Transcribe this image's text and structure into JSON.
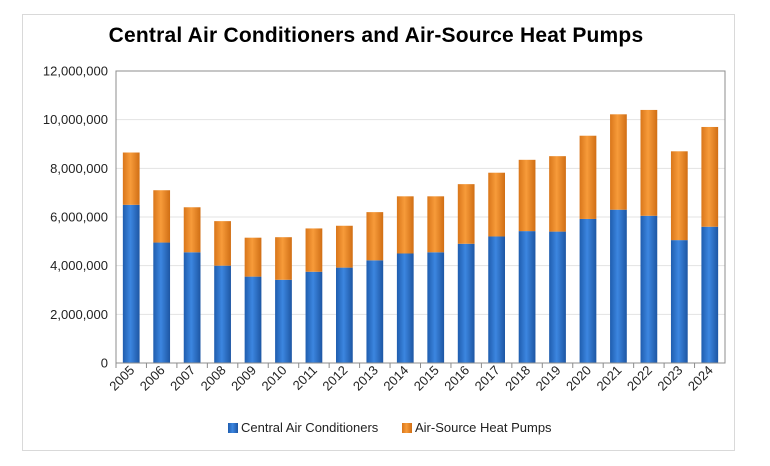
{
  "chart_data": {
    "type": "bar",
    "stacked": true,
    "title": "Central Air Conditioners and Air-Source Heat Pumps",
    "xlabel": "",
    "ylabel": "",
    "ylim": [
      0,
      12000000
    ],
    "yticks": [
      0,
      2000000,
      4000000,
      6000000,
      8000000,
      10000000,
      12000000
    ],
    "ytick_labels": [
      "0",
      "2,000,000",
      "4,000,000",
      "6,000,000",
      "8,000,000",
      "10,000,000",
      "12,000,000"
    ],
    "categories": [
      "2005",
      "2006",
      "2007",
      "2008",
      "2009",
      "2010",
      "2011",
      "2012",
      "2013",
      "2014",
      "2015",
      "2016",
      "2017",
      "2018",
      "2019",
      "2020",
      "2021",
      "2022",
      "2023",
      "2024"
    ],
    "series": [
      {
        "name": "Central Air Conditioners",
        "color": "#2E75D0",
        "values": [
          6500000,
          4950000,
          4550000,
          4000000,
          3550000,
          3420000,
          3750000,
          3920000,
          4220000,
          4500000,
          4550000,
          4900000,
          5200000,
          5420000,
          5400000,
          5920000,
          6300000,
          6050000,
          5050000,
          5600000
        ]
      },
      {
        "name": "Air-Source Heat Pumps",
        "color": "#F0902A",
        "values": [
          2150000,
          2150000,
          1850000,
          1830000,
          1600000,
          1750000,
          1780000,
          1720000,
          1980000,
          2350000,
          2300000,
          2450000,
          2620000,
          2930000,
          3100000,
          3420000,
          3920000,
          4350000,
          3650000,
          4100000
        ]
      }
    ],
    "legend": "bottom",
    "grid": true
  }
}
